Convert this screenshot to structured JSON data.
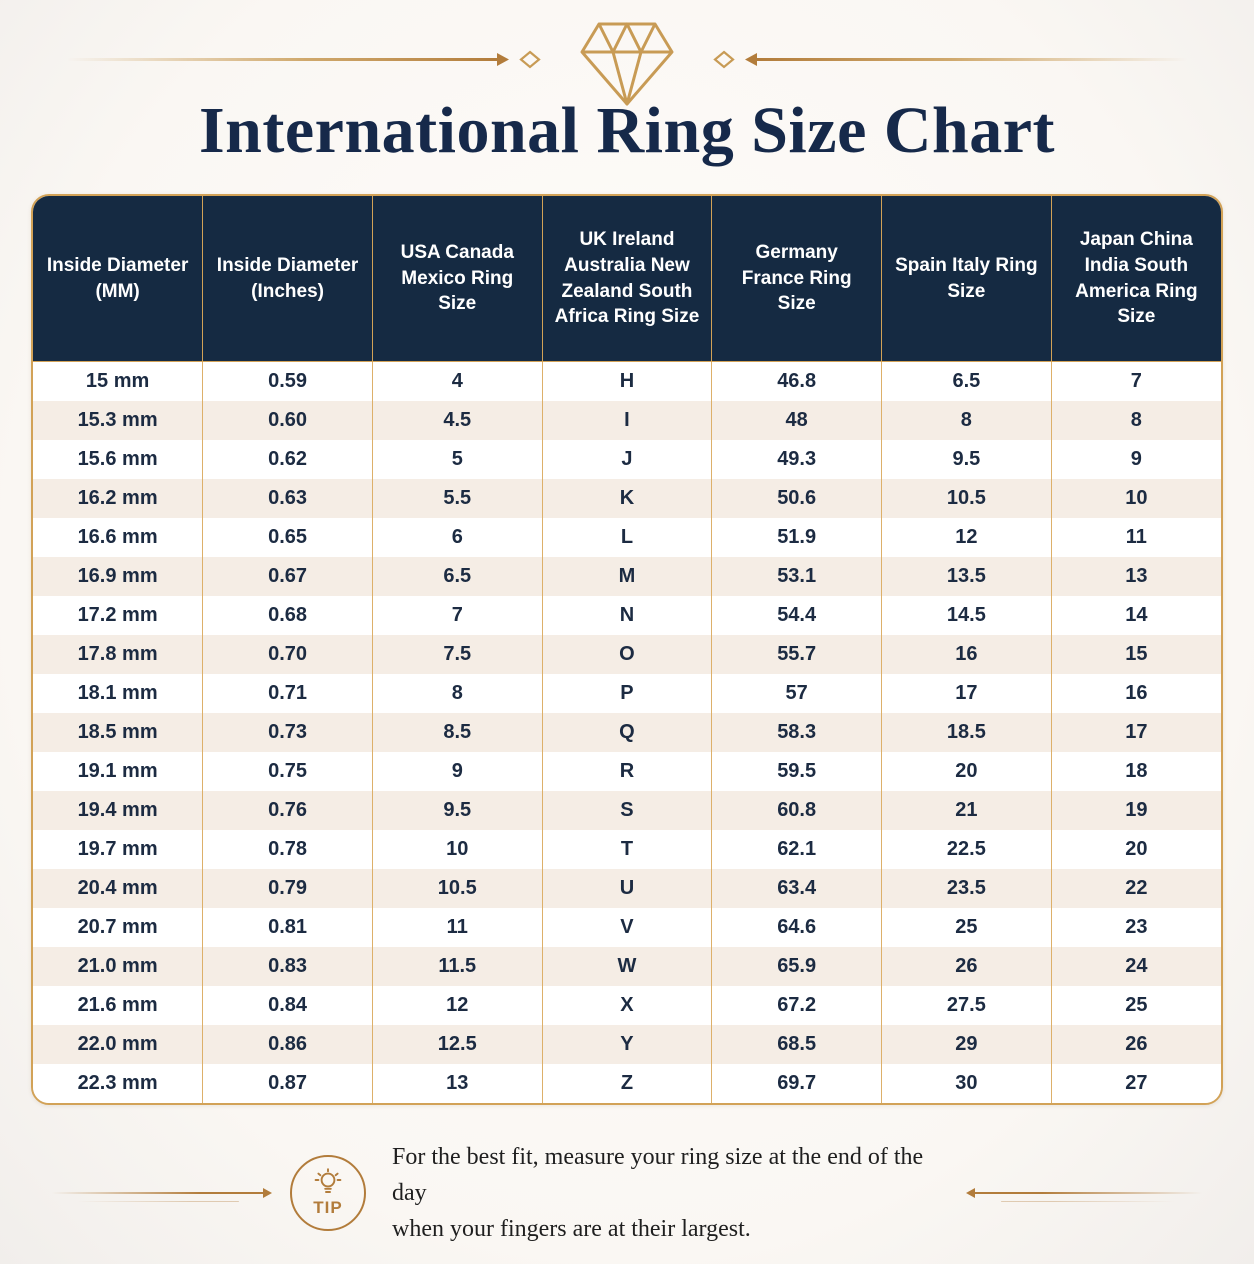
{
  "header": {
    "title": "International Ring Size Chart",
    "divider_icon": "diamond-icon"
  },
  "chart_data": {
    "type": "table",
    "title": "International Ring Size Chart",
    "columns": [
      "Inside Diameter (MM)",
      "Inside Diameter (Inches)",
      "USA Canada Mexico Ring Size",
      "UK Ireland Australia New Zealand South Africa Ring Size",
      "Germany France Ring Size",
      "Spain Italy Ring Size",
      "Japan China India South America Ring Size"
    ],
    "rows": [
      [
        "15 mm",
        "0.59",
        "4",
        "H",
        "46.8",
        "6.5",
        "7"
      ],
      [
        "15.3 mm",
        "0.60",
        "4.5",
        "I",
        "48",
        "8",
        "8"
      ],
      [
        "15.6 mm",
        "0.62",
        "5",
        "J",
        "49.3",
        "9.5",
        "9"
      ],
      [
        "16.2 mm",
        "0.63",
        "5.5",
        "K",
        "50.6",
        "10.5",
        "10"
      ],
      [
        "16.6 mm",
        "0.65",
        "6",
        "L",
        "51.9",
        "12",
        "11"
      ],
      [
        "16.9 mm",
        "0.67",
        "6.5",
        "M",
        "53.1",
        "13.5",
        "13"
      ],
      [
        "17.2 mm",
        "0.68",
        "7",
        "N",
        "54.4",
        "14.5",
        "14"
      ],
      [
        "17.8 mm",
        "0.70",
        "7.5",
        "O",
        "55.7",
        "16",
        "15"
      ],
      [
        "18.1 mm",
        "0.71",
        "8",
        "P",
        "57",
        "17",
        "16"
      ],
      [
        "18.5 mm",
        "0.73",
        "8.5",
        "Q",
        "58.3",
        "18.5",
        "17"
      ],
      [
        "19.1 mm",
        "0.75",
        "9",
        "R",
        "59.5",
        "20",
        "18"
      ],
      [
        "19.4 mm",
        "0.76",
        "9.5",
        "S",
        "60.8",
        "21",
        "19"
      ],
      [
        "19.7 mm",
        "0.78",
        "10",
        "T",
        "62.1",
        "22.5",
        "20"
      ],
      [
        "20.4 mm",
        "0.79",
        "10.5",
        "U",
        "63.4",
        "23.5",
        "22"
      ],
      [
        "20.7 mm",
        "0.81",
        "11",
        "V",
        "64.6",
        "25",
        "23"
      ],
      [
        "21.0 mm",
        "0.83",
        "11.5",
        "W",
        "65.9",
        "26",
        "24"
      ],
      [
        "21.6 mm",
        "0.84",
        "12",
        "X",
        "67.2",
        "27.5",
        "25"
      ],
      [
        "22.0 mm",
        "0.86",
        "12.5",
        "Y",
        "68.5",
        "29",
        "26"
      ],
      [
        "22.3 mm",
        "0.87",
        "13",
        "Z",
        "69.7",
        "30",
        "27"
      ]
    ],
    "layout": {
      "grid": "vertical gold separators only, alternating row stripes",
      "header_background": "#152a42",
      "stripe_colors": [
        "#ffffff",
        "#f5ede5"
      ]
    }
  },
  "tip": {
    "badge_label": "TIP",
    "icon": "lightbulb-icon",
    "line1": "For the best fit, measure your ring size at the end of the day",
    "line2": "when your fingers are at their largest."
  },
  "colors": {
    "background": "#faf7f4",
    "title_navy": "#16294a",
    "header_navy": "#152a42",
    "table_border_gold": "#d2a257",
    "body_divider_gold": "#ddb06a",
    "row_cream": "#f5ede5",
    "cell_text_navy": "#1c2b42",
    "tip_bronze": "#b27c3b"
  }
}
